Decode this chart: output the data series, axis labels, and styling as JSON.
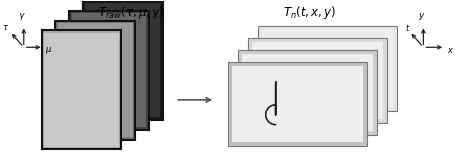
{
  "fig_width": 4.62,
  "fig_height": 1.65,
  "dpi": 100,
  "bg_color": "#ffffff",
  "left_shades": [
    "#aaaaaa",
    "#777777",
    "#444444",
    "#1a1a1a"
  ],
  "left_inner_shades": [
    "#c8c8c8",
    "#999999",
    "#666666",
    "#333333"
  ],
  "right_shades": [
    "#c0c0c0",
    "#cccccc",
    "#d8d8d8",
    "#e4e4e4"
  ],
  "right_inner": "#eeeeee",
  "crack_color": "#222222",
  "border_color": "#111111",
  "mid_arrow_color": "#555555",
  "axis_color": "#222222"
}
